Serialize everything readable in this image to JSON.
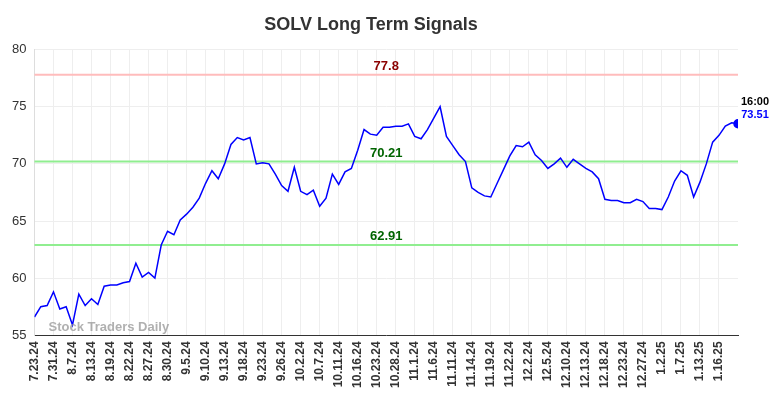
{
  "chart_data": {
    "type": "line",
    "title": "SOLV Long Term Signals",
    "watermark": "Stock Traders Daily",
    "categories": [
      "7.23.24",
      null,
      null,
      "7.31.24",
      null,
      null,
      "8.7.24",
      null,
      null,
      "8.13.24",
      null,
      null,
      "8.19.24",
      null,
      null,
      "8.22.24",
      null,
      null,
      "8.27.24",
      null,
      null,
      "8.30.24",
      null,
      null,
      "9.5.24",
      null,
      null,
      "9.10.24",
      null,
      null,
      "9.13.24",
      null,
      null,
      "9.18.24",
      null,
      null,
      "9.23.24",
      null,
      null,
      "9.26.24",
      null,
      null,
      "10.2.24",
      null,
      null,
      "10.7.24",
      null,
      null,
      "10.11.24",
      null,
      null,
      "10.16.24",
      null,
      null,
      "10.23.24",
      null,
      null,
      "10.28.24",
      null,
      null,
      "11.1.24",
      null,
      null,
      "11.6.24",
      null,
      null,
      "11.11.24",
      null,
      null,
      "11.14.24",
      null,
      null,
      "11.19.24",
      null,
      null,
      "11.22.24",
      null,
      null,
      "12.2.24",
      null,
      null,
      "12.5.24",
      null,
      null,
      "12.10.24",
      null,
      null,
      "12.13.24",
      null,
      null,
      "12.18.24",
      null,
      null,
      "12.23.24",
      null,
      null,
      "12.27.24",
      null,
      null,
      "1.2.25",
      null,
      null,
      "1.7.25",
      null,
      null,
      "1.13.25",
      null,
      null,
      "1.16.25",
      null,
      null,
      null
    ],
    "values": [
      56.6,
      57.5,
      57.6,
      58.8,
      57.3,
      57.5,
      55.9,
      58.6,
      57.6,
      58.2,
      57.7,
      59.3,
      59.4,
      59.4,
      59.6,
      59.7,
      61.3,
      60.1,
      60.5,
      60.0,
      62.9,
      64.1,
      63.8,
      65.1,
      65.6,
      66.2,
      67.0,
      68.3,
      69.4,
      68.7,
      70.0,
      71.7,
      72.3,
      72.1,
      72.3,
      70.0,
      70.1,
      70.0,
      69.1,
      68.1,
      67.6,
      69.7,
      67.6,
      67.3,
      67.7,
      66.3,
      67.0,
      69.1,
      68.2,
      69.3,
      69.6,
      71.2,
      73.0,
      72.6,
      72.5,
      73.2,
      73.2,
      73.3,
      73.3,
      73.5,
      72.4,
      72.2,
      73.0,
      74.0,
      75.0,
      72.4,
      71.6,
      70.8,
      70.2,
      67.9,
      67.5,
      67.2,
      67.1,
      68.3,
      69.5,
      70.7,
      71.6,
      71.5,
      71.9,
      70.8,
      70.3,
      69.6,
      70.0,
      70.5,
      69.7,
      70.4,
      70.0,
      69.6,
      69.3,
      68.7,
      66.9,
      66.8,
      66.8,
      66.6,
      66.6,
      66.9,
      66.7,
      66.1,
      66.1,
      66.0,
      67.1,
      68.5,
      69.4,
      69.0,
      67.1,
      68.4,
      70.0,
      71.9,
      72.5,
      73.3,
      73.6,
      73.51
    ],
    "color": "#0000ff",
    "ylim": [
      55,
      80
    ],
    "yticks": [
      55,
      60,
      65,
      70,
      75,
      80
    ],
    "grid": true,
    "reference_lines": [
      {
        "value": 77.8,
        "label": "77.8",
        "color": "#ffbcbc",
        "label_color": "#8b0000"
      },
      {
        "value": 70.21,
        "label": "70.21",
        "color": "#90ee90",
        "label_color": "#006400"
      },
      {
        "value": 62.91,
        "label": "62.91",
        "color": "#90ee90",
        "label_color": "#006400"
      }
    ],
    "last_point": {
      "time": "16:00",
      "value_label": "73.51",
      "label_color": "#0000ff"
    }
  }
}
